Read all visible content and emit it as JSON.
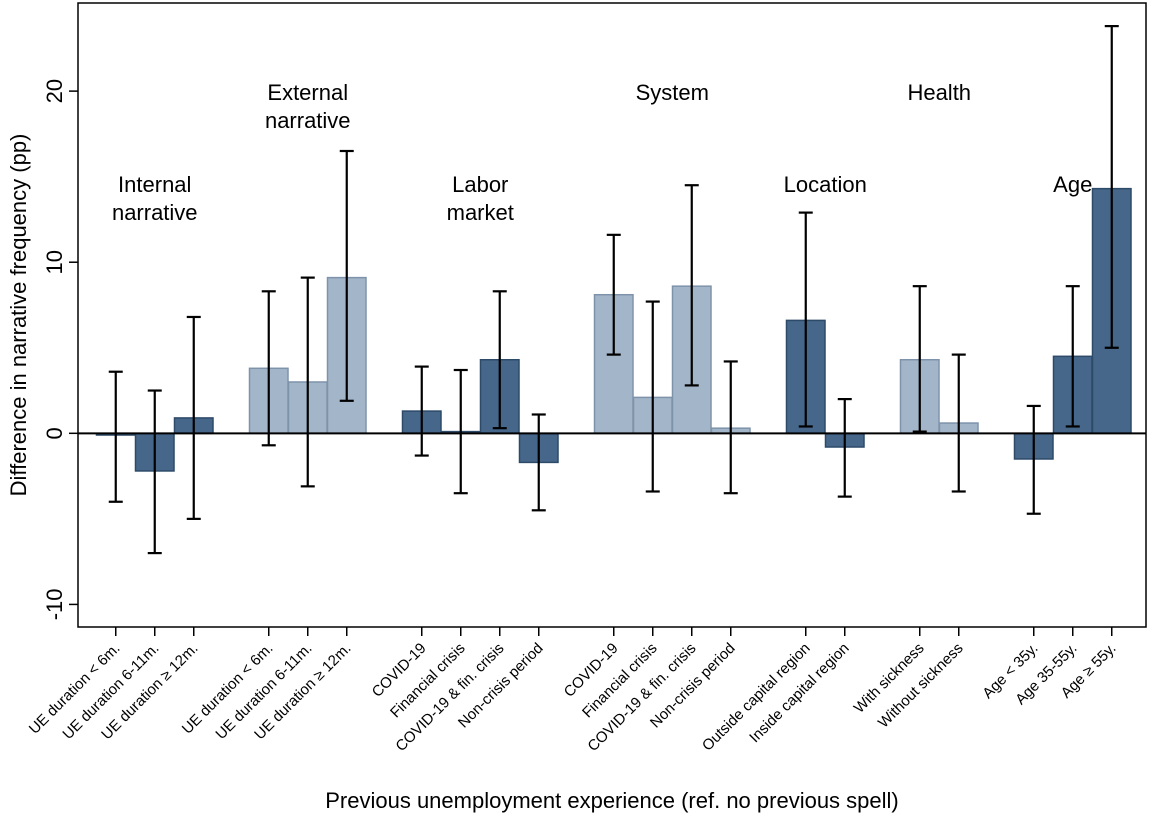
{
  "chart_data": {
    "type": "bar",
    "title": "",
    "xlabel": "Previous unemployment experience (ref. no previous spell)",
    "ylabel": "Difference in narrative frequency (pp)",
    "ylim": [
      -11,
      26
    ],
    "yticks": [
      -10,
      0,
      10,
      20
    ],
    "grid": false,
    "colors": {
      "dark": "#46678a",
      "light": "#a3b5c8",
      "dark_edge": "#2d4a69",
      "light_edge": "#7e93aa"
    },
    "groups": [
      {
        "label": [
          "Internal",
          "narrative"
        ],
        "bars": [
          {
            "category": "UE duration < 6m.",
            "value": -0.1,
            "ci": [
              -4.0,
              3.6
            ],
            "shade": "dark"
          },
          {
            "category": "UE duration  6-11m.",
            "value": -2.2,
            "ci": [
              -7.0,
              2.5
            ],
            "shade": "dark"
          },
          {
            "category": "UE duration ≥ 12m.",
            "value": 0.9,
            "ci": [
              -5.0,
              6.8
            ],
            "shade": "dark"
          }
        ]
      },
      {
        "label": [
          "External",
          "narrative"
        ],
        "bars": [
          {
            "category": "UE duration < 6m.",
            "value": 3.8,
            "ci": [
              -0.7,
              8.3
            ],
            "shade": "light"
          },
          {
            "category": "UE duration  6-11m.",
            "value": 3.0,
            "ci": [
              -3.1,
              9.1
            ],
            "shade": "light"
          },
          {
            "category": "UE duration ≥ 12m.",
            "value": 9.1,
            "ci": [
              1.9,
              16.5
            ],
            "shade": "light"
          }
        ]
      },
      {
        "label": [
          "Labor",
          "market"
        ],
        "bars": [
          {
            "category": "COVID-19",
            "value": 1.3,
            "ci": [
              -1.3,
              3.9
            ],
            "shade": "dark"
          },
          {
            "category": "Financial crisis",
            "value": 0.1,
            "ci": [
              -3.5,
              3.7
            ],
            "shade": "dark"
          },
          {
            "category": "COVID-19 & fin. crisis",
            "value": 4.3,
            "ci": [
              0.3,
              8.3
            ],
            "shade": "dark"
          },
          {
            "category": "Non-crisis period",
            "value": -1.7,
            "ci": [
              -4.5,
              1.1
            ],
            "shade": "dark"
          }
        ]
      },
      {
        "label": [
          "System"
        ],
        "bars": [
          {
            "category": "COVID-19",
            "value": 8.1,
            "ci": [
              4.6,
              11.6
            ],
            "shade": "light"
          },
          {
            "category": "Financial crisis",
            "value": 2.1,
            "ci": [
              -3.4,
              7.7
            ],
            "shade": "light"
          },
          {
            "category": "COVID-19 & fin. crisis",
            "value": 8.6,
            "ci": [
              2.8,
              14.5
            ],
            "shade": "light"
          },
          {
            "category": "Non-crisis period",
            "value": 0.3,
            "ci": [
              -3.5,
              4.2
            ],
            "shade": "light"
          }
        ]
      },
      {
        "label": [
          "Location"
        ],
        "bars": [
          {
            "category": "Outside capital region",
            "value": 6.6,
            "ci": [
              0.4,
              12.9
            ],
            "shade": "dark"
          },
          {
            "category": "Inside capital region",
            "value": -0.8,
            "ci": [
              -3.7,
              2.0
            ],
            "shade": "dark"
          }
        ]
      },
      {
        "label": [
          "Health"
        ],
        "bars": [
          {
            "category": "With sickness",
            "value": 4.3,
            "ci": [
              0.1,
              8.6
            ],
            "shade": "light"
          },
          {
            "category": "Without sickness",
            "value": 0.6,
            "ci": [
              -3.4,
              4.6
            ],
            "shade": "light"
          }
        ]
      },
      {
        "label": [
          "Age"
        ],
        "bars": [
          {
            "category": "Age < 35y.",
            "value": -1.5,
            "ci": [
              -4.7,
              1.6
            ],
            "shade": "dark"
          },
          {
            "category": "Age 35-55y.",
            "value": 4.5,
            "ci": [
              0.4,
              8.6
            ],
            "shade": "dark"
          },
          {
            "category": "Age ≥ 55y.",
            "value": 14.3,
            "ci": [
              5.0,
              23.8
            ],
            "shade": "dark"
          }
        ]
      }
    ]
  }
}
